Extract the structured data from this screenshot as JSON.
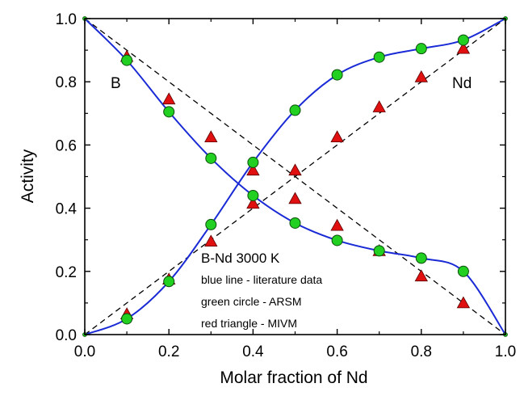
{
  "chart_data": {
    "type": "line",
    "xlabel": "Molar fraction of Nd",
    "ylabel": "Activity",
    "xlim": [
      0.0,
      1.0
    ],
    "ylim": [
      0.0,
      1.0
    ],
    "x_ticks": [
      "0.0",
      "0.2",
      "0.4",
      "0.6",
      "0.8",
      "1.0"
    ],
    "y_ticks": [
      "0.0",
      "0.2",
      "0.4",
      "0.6",
      "0.8",
      "1.0"
    ],
    "grid": false,
    "series_labels": {
      "b": "B",
      "nd": "Nd"
    },
    "annotations": {
      "title": "B-Nd 3000 K",
      "line1": "blue line - literature data",
      "line2": "green circle - ARSM",
      "line3": "red triangle - MIVM"
    },
    "colors": {
      "literature": "#1a2bd6",
      "arsm": "#22d022",
      "mivm": "#e01010",
      "ideal": "#000000"
    },
    "series": [
      {
        "component": "B",
        "style": "blue line",
        "x": [
          0.0,
          0.1,
          0.2,
          0.3,
          0.4,
          0.5,
          0.6,
          0.7,
          0.8,
          0.9,
          1.0
        ],
        "values": [
          1.0,
          0.868,
          0.705,
          0.558,
          0.44,
          0.353,
          0.298,
          0.265,
          0.242,
          0.2,
          0.0
        ]
      },
      {
        "component": "Nd",
        "style": "blue line",
        "x": [
          0.0,
          0.1,
          0.2,
          0.3,
          0.4,
          0.5,
          0.6,
          0.7,
          0.8,
          0.9,
          1.0
        ],
        "values": [
          0.0,
          0.05,
          0.168,
          0.348,
          0.545,
          0.71,
          0.822,
          0.878,
          0.905,
          0.932,
          1.0
        ]
      },
      {
        "component": "B",
        "style": "green circle",
        "x": [
          0.1,
          0.2,
          0.3,
          0.4,
          0.5,
          0.6,
          0.7,
          0.8,
          0.9
        ],
        "values": [
          0.868,
          0.705,
          0.558,
          0.44,
          0.353,
          0.298,
          0.265,
          0.242,
          0.2
        ]
      },
      {
        "component": "Nd",
        "style": "green circle",
        "x": [
          0.1,
          0.2,
          0.3,
          0.4,
          0.5,
          0.6,
          0.7,
          0.8,
          0.9
        ],
        "values": [
          0.05,
          0.168,
          0.348,
          0.545,
          0.71,
          0.822,
          0.878,
          0.905,
          0.932
        ]
      },
      {
        "component": "B",
        "style": "red triangle",
        "x": [
          0.1,
          0.2,
          0.3,
          0.4,
          0.5,
          0.6,
          0.7,
          0.8,
          0.9
        ],
        "values": [
          0.88,
          0.745,
          0.625,
          0.415,
          0.43,
          0.345,
          0.265,
          0.185,
          0.1
        ]
      },
      {
        "component": "Nd",
        "style": "red triangle",
        "x": [
          0.1,
          0.2,
          0.3,
          0.4,
          0.5,
          0.6,
          0.7,
          0.8,
          0.9
        ],
        "values": [
          0.065,
          0.175,
          0.295,
          0.52,
          0.52,
          0.625,
          0.72,
          0.815,
          0.905
        ]
      },
      {
        "component": "B",
        "style": "dashed line",
        "x": [
          0.0,
          1.0
        ],
        "values": [
          1.0,
          0.0
        ]
      },
      {
        "component": "Nd",
        "style": "dashed line",
        "x": [
          0.0,
          1.0
        ],
        "values": [
          0.0,
          1.0
        ]
      }
    ]
  }
}
